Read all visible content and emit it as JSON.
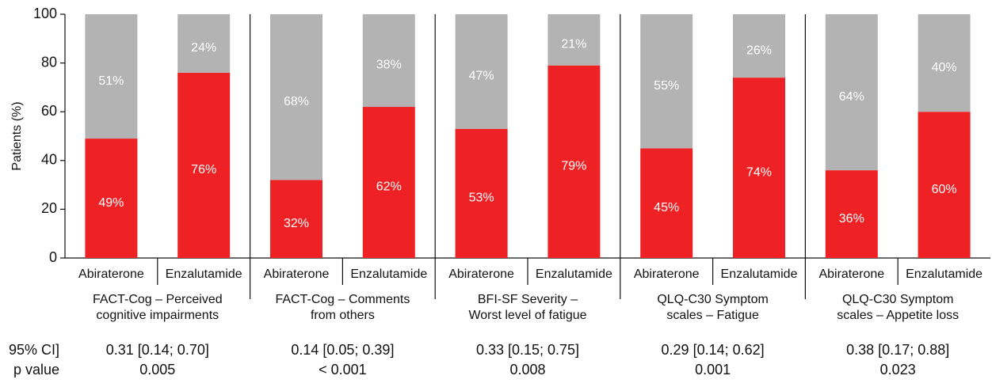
{
  "chart_data": {
    "type": "bar",
    "stacked": true,
    "ylabel": "Patients (%)",
    "categories": [
      "Abiraterone",
      "Enzalutamide",
      "Abiraterone",
      "Enzalutamide",
      "Abiraterone",
      "Enzalutamide",
      "Abiraterone",
      "Enzalutamide",
      "Abiraterone",
      "Enzalutamide"
    ],
    "groups": [
      {
        "label": [
          "FACT-Cog – Perceived",
          "cognitive impairments"
        ],
        "stats": [
          "0.31 [0.14; 0.70]",
          "0.005"
        ]
      },
      {
        "label": [
          "FACT-Cog – Comments",
          "from others"
        ],
        "stats": [
          "0.14 [0.05; 0.39]",
          "< 0.001"
        ]
      },
      {
        "label": [
          "BFI-SF Severity –",
          "Worst level of fatigue"
        ],
        "stats": [
          "0.33 [0.15; 0.75]",
          "0.008"
        ]
      },
      {
        "label": [
          "QLQ-C30 Symptom",
          "scales – Fatigue"
        ],
        "stats": [
          "0.29 [0.14; 0.62]",
          "0.001"
        ]
      },
      {
        "label": [
          "QLQ-C30 Symptom",
          "scales – Appetite loss"
        ],
        "stats": [
          "0.38 [0.17; 0.88]",
          "0.023"
        ]
      }
    ],
    "stats_labels": [
      "95% CI]",
      "p value"
    ],
    "series": [
      {
        "color": "#ee2124",
        "values": [
          49,
          76,
          32,
          62,
          53,
          79,
          45,
          74,
          36,
          60
        ],
        "value_labels": [
          "49%",
          "76%",
          "32%",
          "62%",
          "53%",
          "79%",
          "45%",
          "74%",
          "36%",
          "60%"
        ]
      },
      {
        "color": "#b3b3b3",
        "values": [
          51,
          24,
          68,
          38,
          47,
          21,
          55,
          26,
          64,
          40
        ],
        "value_labels": [
          "51%",
          "24%",
          "68%",
          "38%",
          "47%",
          "21%",
          "55%",
          "26%",
          "64%",
          "40%"
        ]
      }
    ],
    "ylim": [
      0,
      100
    ],
    "yticks": [
      0,
      20,
      40,
      60,
      80,
      100
    ]
  }
}
